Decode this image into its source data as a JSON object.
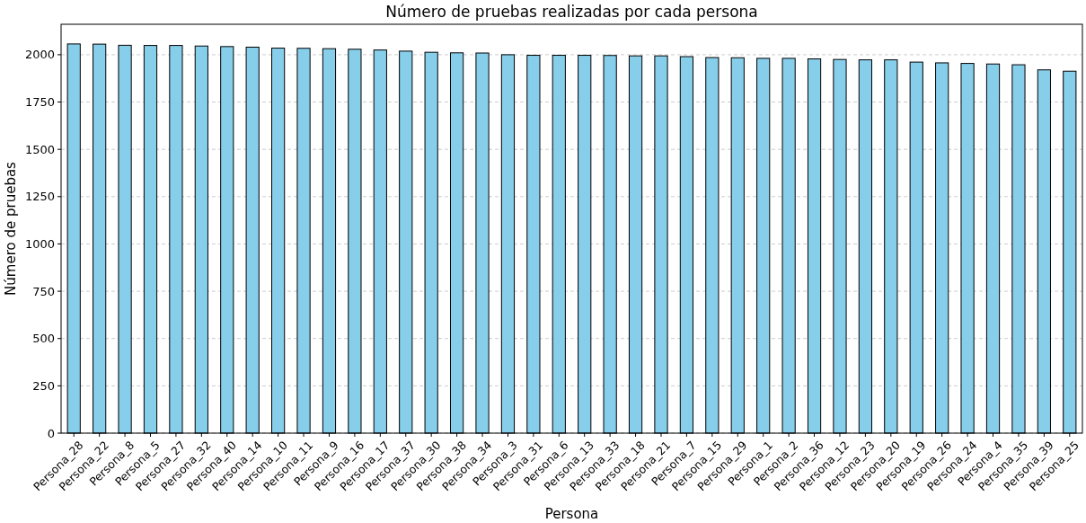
{
  "chart_data": {
    "type": "bar",
    "title": "Número de pruebas realizadas por cada persona",
    "xlabel": "Persona",
    "ylabel": "Número de pruebas",
    "categories": [
      "Persona_28",
      "Persona_22",
      "Persona_8",
      "Persona_5",
      "Persona_27",
      "Persona_32",
      "Persona_40",
      "Persona_14",
      "Persona_10",
      "Persona_11",
      "Persona_9",
      "Persona_16",
      "Persona_17",
      "Persona_37",
      "Persona_30",
      "Persona_38",
      "Persona_34",
      "Persona_3",
      "Persona_31",
      "Persona_6",
      "Persona_13",
      "Persona_33",
      "Persona_18",
      "Persona_21",
      "Persona_7",
      "Persona_15",
      "Persona_29",
      "Persona_1",
      "Persona_2",
      "Persona_36",
      "Persona_12",
      "Persona_23",
      "Persona_20",
      "Persona_19",
      "Persona_26",
      "Persona_24",
      "Persona_4",
      "Persona_35",
      "Persona_39",
      "Persona_25"
    ],
    "values": [
      2057,
      2056,
      2050,
      2049,
      2049,
      2046,
      2043,
      2040,
      2035,
      2034,
      2032,
      2029,
      2025,
      2019,
      2013,
      2010,
      2009,
      2000,
      1997,
      1997,
      1997,
      1996,
      1994,
      1994,
      1990,
      1985,
      1984,
      1981,
      1981,
      1978,
      1975,
      1973,
      1973,
      1961,
      1957,
      1954,
      1951,
      1947,
      1920,
      1913
    ],
    "color": "#87ceeb",
    "ylim": [
      0,
      2161
    ],
    "yticks": [
      0,
      250,
      500,
      750,
      1000,
      1250,
      1500,
      1750,
      2000
    ],
    "grid": "y"
  }
}
